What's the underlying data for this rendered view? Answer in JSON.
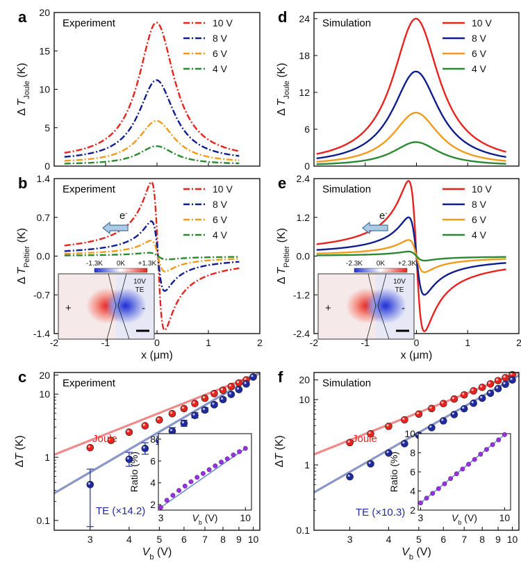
{
  "colors": {
    "v10": "#e8221c",
    "v8": "#0f1e8c",
    "v6": "#f29b1a",
    "v4": "#2a8a32",
    "joule_dot": "#e8221c",
    "te_dot": "#1f2a9e",
    "ratio_dot": "#9b30e0",
    "joule_fit": "#f08a8a",
    "te_fit": "#8a96c8",
    "ratio_fit": "#5b7fd6"
  },
  "shared": {
    "x_axis_label": "x (μm)",
    "vb_label": "V",
    "vb_sub": "b",
    "vb_unit": " (V)",
    "dT_label": "ΔT (K)",
    "dT_prefix": "Δ",
    "dT_unit": " (K)",
    "joule_sub": "Joule",
    "peltier_sub": "Peltier",
    "electron_label": "e",
    "electron_sup": "-",
    "ratio_label": "Ratio (%)",
    "inset_bias": "10V",
    "inset_mode": "TE",
    "inset_plus": "+",
    "inset_minus": "-"
  },
  "chart_data": [
    {
      "id": "a",
      "type": "line",
      "panel_label": "a",
      "title": "Experiment",
      "style": "dashdot",
      "xlabel": "",
      "ylabel": "ΔT_Joule (K)",
      "xlim": [
        -2,
        2
      ],
      "ylim": [
        0,
        20
      ],
      "yticks": [
        0,
        5,
        10,
        15,
        20
      ],
      "xticks": [
        -2,
        -1,
        0,
        1,
        2
      ],
      "x_range": [
        -1.8,
        1.6
      ],
      "series": [
        {
          "name": "10 V",
          "legend": "10 V",
          "peak": 18.7,
          "width": 0.42,
          "tail": 0.8,
          "x0": -0.01
        },
        {
          "name": "8 V",
          "legend": "8 V",
          "peak": 11.2,
          "width": 0.42,
          "tail": 0.65,
          "x0": -0.01
        },
        {
          "name": "6 V",
          "legend": "6 V",
          "peak": 5.9,
          "width": 0.42,
          "tail": 0.4,
          "x0": -0.01
        },
        {
          "name": "4 V",
          "legend": "4 V",
          "peak": 2.6,
          "width": 0.42,
          "tail": 0.2,
          "x0": -0.01
        }
      ]
    },
    {
      "id": "b",
      "type": "line",
      "panel_label": "b",
      "title": "Experiment",
      "style": "dashdot",
      "xlabel": "x (μm)",
      "ylabel": "ΔT_Peltier (K)",
      "xlim": [
        -2,
        2
      ],
      "ylim": [
        -1.4,
        1.4
      ],
      "yticks": [
        -1.4,
        -0.7,
        0.0,
        0.7,
        1.4
      ],
      "ytick_labels": [
        "-1.4",
        "-0.7",
        "0.0",
        "0.7",
        "1.4"
      ],
      "xticks": [
        -2,
        -1,
        0,
        1,
        2
      ],
      "x_range": [
        -1.8,
        1.6
      ],
      "series": [
        {
          "name": "10 V",
          "legend": "10 V",
          "amp": 1.34,
          "width": 0.13,
          "x0": 0.02
        },
        {
          "name": "8 V",
          "legend": "8 V",
          "amp": 0.63,
          "width": 0.13,
          "x0": 0.02
        },
        {
          "name": "6 V",
          "legend": "6 V",
          "amp": 0.28,
          "width": 0.14,
          "x0": 0.02
        },
        {
          "name": "4 V",
          "legend": "4 V",
          "amp": 0.06,
          "width": 0.18,
          "x0": 0.02
        }
      ],
      "inset": {
        "colorbar_ticks": [
          "-1.3K",
          "0K",
          "+1.3K"
        ]
      }
    },
    {
      "id": "c",
      "type": "scatter",
      "panel_label": "c",
      "title": "Experiment",
      "xlabel": "V_b (V)",
      "ylabel": "ΔT (K)",
      "scale": "log-log",
      "xlim": [
        2.3,
        10.5
      ],
      "ylim": [
        0.07,
        22
      ],
      "xticks": [
        3,
        4,
        5,
        6,
        7,
        8,
        9,
        10
      ],
      "yticks": [
        0.1,
        1,
        10,
        20
      ],
      "ytick_labels": [
        "0.1",
        "1",
        "10",
        "20"
      ],
      "series": [
        {
          "name": "Joule",
          "label": "Joule",
          "x": [
            3,
            3.5,
            4,
            4.5,
            5,
            5.5,
            6,
            6.5,
            7,
            7.5,
            8,
            8.5,
            9,
            9.5,
            10
          ],
          "y": [
            1.42,
            1.85,
            2.5,
            3.15,
            3.9,
            4.9,
            5.9,
            7.1,
            8.6,
            10.2,
            11.5,
            13.2,
            15.0,
            16.8,
            18.7
          ]
        },
        {
          "name": "TE (×14.2)",
          "label": "TE (×14.2)",
          "x": [
            3,
            4,
            4.5,
            5,
            5.5,
            6,
            6.5,
            7,
            7.5,
            8,
            8.5,
            9,
            9.5,
            10
          ],
          "y": [
            0.37,
            0.93,
            1.38,
            1.85,
            2.6,
            3.45,
            4.6,
            5.6,
            6.8,
            8.2,
            9.9,
            11.8,
            14.5,
            18.7
          ],
          "err_low": [
            0.08,
            0.72,
            1.12,
            1.6,
            2.3,
            3.1,
            4.2,
            5.2,
            6.4,
            7.8,
            9.5,
            11.4,
            14.0,
            18.0
          ],
          "err_high": [
            0.65,
            1.2,
            1.7,
            2.15,
            2.95,
            3.85,
            5.1,
            6.1,
            7.3,
            8.7,
            10.4,
            12.3,
            15.0,
            19.4
          ]
        }
      ],
      "fits": [
        {
          "name": "Joule fit",
          "x": [
            2.3,
            10.5
          ],
          "y": [
            1.1,
            21.5
          ]
        },
        {
          "name": "TE fit",
          "x": [
            2.3,
            10.5
          ],
          "y": [
            0.27,
            21.5
          ]
        }
      ],
      "inset": {
        "xlim": [
          2.8,
          10.5
        ],
        "ylim": [
          1.5,
          8.5
        ],
        "xticks": [
          3,
          10
        ],
        "yticks": [
          2,
          4,
          6,
          8
        ],
        "x": [
          3,
          3.5,
          4,
          4.5,
          5,
          5.5,
          6,
          6.5,
          7,
          7.5,
          8,
          8.5,
          9,
          9.5,
          10
        ],
        "y": [
          1.75,
          2.4,
          2.85,
          3.3,
          3.7,
          4.1,
          4.5,
          4.85,
          5.2,
          5.55,
          5.9,
          6.2,
          6.55,
          6.85,
          7.15
        ]
      }
    },
    {
      "id": "d",
      "type": "line",
      "panel_label": "d",
      "title": "Simulation",
      "style": "solid",
      "xlabel": "",
      "ylabel": "ΔT_Joule (K)",
      "xlim": [
        -2,
        2
      ],
      "ylim": [
        0,
        25
      ],
      "yticks": [
        0,
        6,
        12,
        18,
        24
      ],
      "xticks": [
        -2,
        -1,
        0,
        1,
        2
      ],
      "x_range": [
        -1.95,
        1.75
      ],
      "series": [
        {
          "name": "10 V",
          "legend": "10 V",
          "peak": 24.0,
          "width": 0.55,
          "tail": 0.2,
          "x0": -0.01
        },
        {
          "name": "8 V",
          "legend": "8 V",
          "peak": 15.4,
          "width": 0.55,
          "tail": 0.12,
          "x0": -0.01
        },
        {
          "name": "6 V",
          "legend": "6 V",
          "peak": 8.7,
          "width": 0.55,
          "tail": 0.06,
          "x0": -0.01
        },
        {
          "name": "4 V",
          "legend": "4 V",
          "peak": 3.9,
          "width": 0.55,
          "tail": 0.02,
          "x0": -0.01
        }
      ]
    },
    {
      "id": "e",
      "type": "line",
      "panel_label": "e",
      "title": "Simulation",
      "style": "solid",
      "xlabel": "x (μm)",
      "ylabel": "ΔT_Peltier (K)",
      "xlim": [
        -2,
        2
      ],
      "ylim": [
        -2.4,
        2.4
      ],
      "yticks": [
        -2.4,
        -1.2,
        0.0,
        1.2,
        2.4
      ],
      "ytick_labels": [
        "-2.4",
        "-1.2",
        "0.0",
        "1.2",
        "2.4"
      ],
      "xticks": [
        -2,
        -1,
        0,
        1,
        2
      ],
      "x_range": [
        -1.95,
        1.75
      ],
      "series": [
        {
          "name": "10 V",
          "legend": "10 V",
          "amp": 2.33,
          "width": 0.155,
          "x0": 0.0
        },
        {
          "name": "8 V",
          "legend": "8 V",
          "amp": 1.2,
          "width": 0.155,
          "x0": 0.0
        },
        {
          "name": "6 V",
          "legend": "6 V",
          "amp": 0.5,
          "width": 0.155,
          "x0": 0.0
        },
        {
          "name": "4 V",
          "legend": "4 V",
          "amp": 0.14,
          "width": 0.16,
          "x0": 0.0
        }
      ],
      "inset": {
        "colorbar_ticks": [
          "-2.3K",
          "0K",
          "+2.3K"
        ]
      }
    },
    {
      "id": "f",
      "type": "scatter",
      "panel_label": "f",
      "title": "Simulation",
      "xlabel": "V_b (V)",
      "ylabel": "ΔT (K)",
      "scale": "log-log",
      "xlim": [
        2.3,
        10.5
      ],
      "ylim": [
        0.1,
        26
      ],
      "xticks": [
        3,
        4,
        5,
        6,
        7,
        8,
        9,
        10
      ],
      "yticks": [
        0.1,
        1,
        10,
        20
      ],
      "ytick_labels": [
        "0.1",
        "1",
        "10",
        "20"
      ],
      "series": [
        {
          "name": "Joule",
          "label": "Joule",
          "x": [
            3,
            3.5,
            4,
            4.5,
            5,
            5.5,
            6,
            6.5,
            7,
            7.5,
            8,
            8.5,
            9,
            9.5,
            10
          ],
          "y": [
            2.2,
            3.0,
            3.9,
            4.9,
            6.0,
            7.3,
            8.7,
            10.2,
            11.8,
            13.6,
            15.4,
            17.4,
            19.5,
            21.7,
            24.0
          ]
        },
        {
          "name": "TE (×10.3)",
          "label": "TE (×10.3)",
          "x": [
            3,
            3.5,
            4,
            4.5,
            5,
            5.5,
            6,
            6.5,
            7,
            7.5,
            8,
            8.5,
            9,
            9.5,
            10
          ],
          "y": [
            0.66,
            1.04,
            1.52,
            2.12,
            2.85,
            3.72,
            4.73,
            5.9,
            7.25,
            8.8,
            10.5,
            12.5,
            14.7,
            17.2,
            20.0
          ]
        }
      ],
      "fits": [
        {
          "name": "Joule fit",
          "x": [
            2.3,
            10.5
          ],
          "y": [
            1.45,
            26.0
          ]
        },
        {
          "name": "TE fit",
          "x": [
            2.3,
            10.5
          ],
          "y": [
            0.38,
            23.5
          ]
        }
      ],
      "inset": {
        "xlim": [
          2.8,
          10.5
        ],
        "ylim": [
          2,
          10
        ],
        "xticks": [
          3,
          10
        ],
        "yticks": [
          2,
          4,
          6,
          8,
          10
        ],
        "x": [
          3,
          3.5,
          4,
          4.5,
          5,
          5.5,
          6,
          6.5,
          7,
          7.5,
          8,
          8.5,
          9,
          9.5,
          10
        ],
        "y": [
          2.75,
          3.25,
          3.75,
          4.25,
          4.75,
          5.3,
          5.8,
          6.3,
          6.8,
          7.3,
          7.85,
          8.35,
          8.85,
          9.35,
          9.9
        ]
      }
    }
  ]
}
